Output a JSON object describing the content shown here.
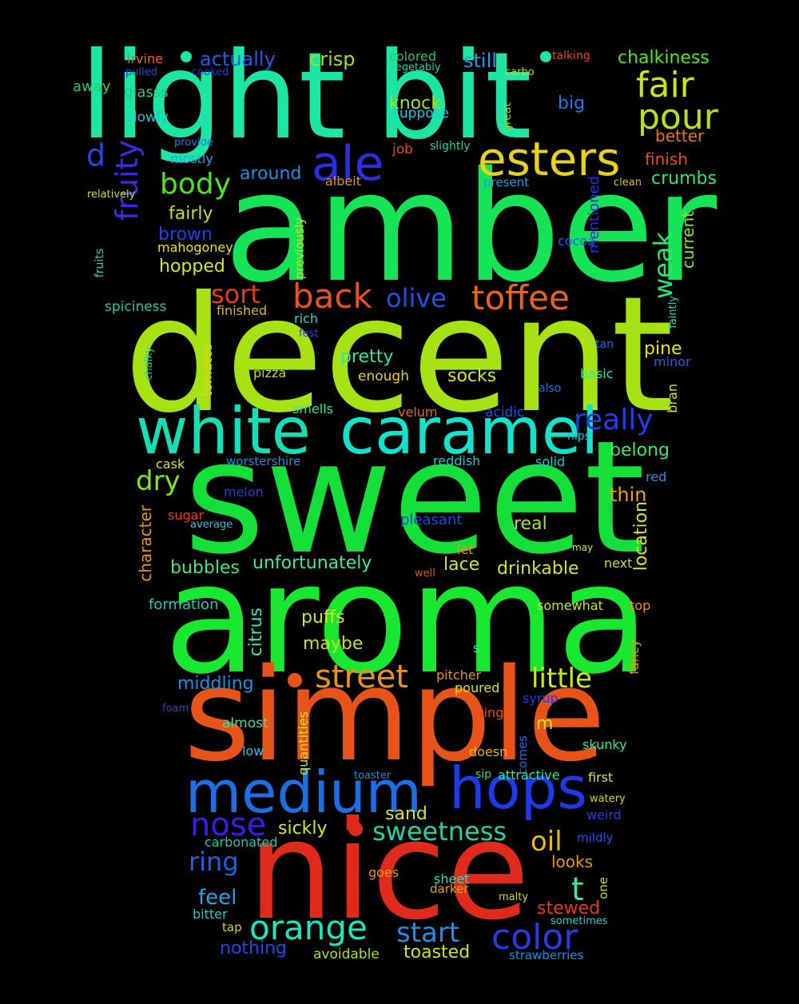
{
  "words": [
    {
      "text": "light",
      "color": "#1de6a4"
    },
    {
      "text": "bit",
      "color": "#1de6a4"
    },
    {
      "text": "amber",
      "color": "#15e456"
    },
    {
      "text": "decent",
      "color": "#a6e214"
    },
    {
      "text": "sweet",
      "color": "#15e03a"
    },
    {
      "text": "aroma",
      "color": "#19e830"
    },
    {
      "text": "simple",
      "color": "#e8531a"
    },
    {
      "text": "nice",
      "color": "#e02a1c"
    },
    {
      "text": "white",
      "color": "#14dfb6"
    },
    {
      "text": "caramel",
      "color": "#14e3cb"
    },
    {
      "text": "medium",
      "color": "#1e6fe6"
    },
    {
      "text": "hops",
      "color": "#1d3be6"
    },
    {
      "text": "esters",
      "color": "#e6d21a"
    },
    {
      "text": "ale",
      "color": "#2a2fe0"
    },
    {
      "text": "fair",
      "color": "#c8e61a"
    },
    {
      "text": "pour",
      "color": "#b8e01a"
    },
    {
      "text": "fruity",
      "color": "#3a2ae6"
    },
    {
      "text": "toffee",
      "color": "#e8641c"
    },
    {
      "text": "back",
      "color": "#e6541a"
    },
    {
      "text": "olive",
      "color": "#2050e6"
    },
    {
      "text": "sort",
      "color": "#e63a1a"
    },
    {
      "text": "body",
      "color": "#4ee61a"
    },
    {
      "text": "d",
      "color": "#2248e0"
    },
    {
      "text": "street",
      "color": "#e8941c"
    },
    {
      "text": "little",
      "color": "#cde61c"
    },
    {
      "text": "nose",
      "color": "#3a1ee6"
    },
    {
      "text": "orange",
      "color": "#1ee6bc"
    },
    {
      "text": "color",
      "color": "#2a3ae6"
    },
    {
      "text": "start",
      "color": "#1e8ee6"
    },
    {
      "text": "sweetness",
      "color": "#1ed6a4"
    },
    {
      "text": "ring",
      "color": "#1e60e6"
    },
    {
      "text": "oil",
      "color": "#e6b81a"
    },
    {
      "text": "really",
      "color": "#1e40e6"
    },
    {
      "text": "weak",
      "color": "#2ae66c"
    },
    {
      "text": "t",
      "color": "#34e8a0"
    },
    {
      "text": "feel",
      "color": "#1ea8e6"
    },
    {
      "text": "dry",
      "color": "#7ee61a"
    },
    {
      "text": "actually",
      "color": "#2a5ae6"
    },
    {
      "text": "crisp",
      "color": "#a6e01a"
    },
    {
      "text": "still",
      "color": "#1e9ee6"
    },
    {
      "text": "chalkiness",
      "color": "#50e61a"
    },
    {
      "text": "irvine",
      "color": "#e8641c"
    },
    {
      "text": "colored",
      "color": "#20c860"
    },
    {
      "text": "talking",
      "color": "#e04a1a"
    },
    {
      "text": "pulled",
      "color": "#3240e0"
    },
    {
      "text": "cooked",
      "color": "#2a3ae0"
    },
    {
      "text": "vegetably",
      "color": "#20d6a0"
    },
    {
      "text": "carbo",
      "color": "#d6d61a"
    },
    {
      "text": "away",
      "color": "#28d060"
    },
    {
      "text": "glasss",
      "color": "#20c886"
    },
    {
      "text": "slowly",
      "color": "#1ec8d6"
    },
    {
      "text": "knock",
      "color": "#a8e01a"
    },
    {
      "text": "suppose",
      "color": "#1ec8e0"
    },
    {
      "text": "big",
      "color": "#1e7ae6"
    },
    {
      "text": "great",
      "color": "#9ad61a"
    },
    {
      "text": "better",
      "color": "#e67a1a"
    },
    {
      "text": "provide",
      "color": "#1e7ae0"
    },
    {
      "text": "mostly",
      "color": "#1eb0e6"
    },
    {
      "text": "job",
      "color": "#e64a1a"
    },
    {
      "text": "slightly",
      "color": "#20d690"
    },
    {
      "text": "finish",
      "color": "#e64a1a"
    },
    {
      "text": "relatively",
      "color": "#c8e01a"
    },
    {
      "text": "around",
      "color": "#1e8ee6"
    },
    {
      "text": "albeit",
      "color": "#e6961a"
    },
    {
      "text": "present",
      "color": "#1e9ed6"
    },
    {
      "text": "mentioned",
      "color": "#2a2ee0"
    },
    {
      "text": "clean",
      "color": "#d6c81a"
    },
    {
      "text": "crumbs",
      "color": "#30e66c"
    },
    {
      "text": "fairly",
      "color": "#c8e01a"
    },
    {
      "text": "brown",
      "color": "#1e42e6"
    },
    {
      "text": "previously",
      "color": "#d6d61a"
    },
    {
      "text": "cocoa",
      "color": "#1e60e6"
    },
    {
      "text": "current",
      "color": "#8ae61a"
    },
    {
      "text": "mahogoney",
      "color": "#e6e61a"
    },
    {
      "text": "fruits",
      "color": "#30d6a0"
    },
    {
      "text": "hopped",
      "color": "#d6e61a"
    },
    {
      "text": "spiciness",
      "color": "#20c8a8"
    },
    {
      "text": "finished",
      "color": "#d6b81a"
    },
    {
      "text": "rich",
      "color": "#1ed6c8"
    },
    {
      "text": "fest",
      "color": "#3a40e0"
    },
    {
      "text": "faintly",
      "color": "#30d6b0"
    },
    {
      "text": "chalky",
      "color": "#28d090"
    },
    {
      "text": "tomates",
      "color": "#e6d01a"
    },
    {
      "text": "pretty",
      "color": "#30e6a8"
    },
    {
      "text": "pizza",
      "color": "#c8d61a"
    },
    {
      "text": "enough",
      "color": "#e6d21a"
    },
    {
      "text": "socks",
      "color": "#d6e61a"
    },
    {
      "text": "tan",
      "color": "#1e6ae6"
    },
    {
      "text": "pine",
      "color": "#e6e61a"
    },
    {
      "text": "minor",
      "color": "#2a5ae6"
    },
    {
      "text": "basic",
      "color": "#30e6a0"
    },
    {
      "text": "also",
      "color": "#1e70e0"
    },
    {
      "text": "bran",
      "color": "#d6e61a"
    },
    {
      "text": "smells",
      "color": "#30e6a0"
    },
    {
      "text": "velum",
      "color": "#e6641a"
    },
    {
      "text": "acidic",
      "color": "#1e4ee6"
    },
    {
      "text": "nips",
      "color": "#1ec8d6"
    },
    {
      "text": "belong",
      "color": "#40e66a"
    },
    {
      "text": "cask",
      "color": "#d6e61a"
    },
    {
      "text": "worstershire",
      "color": "#1e8ee0"
    },
    {
      "text": "reddish",
      "color": "#20c8c8"
    },
    {
      "text": "solid",
      "color": "#20c8c8"
    },
    {
      "text": "red",
      "color": "#2a8ee6"
    },
    {
      "text": "melon",
      "color": "#2a3ae0"
    },
    {
      "text": "thin",
      "color": "#e6a21a"
    },
    {
      "text": "character",
      "color": "#e6961a"
    },
    {
      "text": "sugar",
      "color": "#e63a1a"
    },
    {
      "text": "average",
      "color": "#1ec8e0"
    },
    {
      "text": "pleasant",
      "color": "#1e48e6"
    },
    {
      "text": "real",
      "color": "#a8e61a"
    },
    {
      "text": "location",
      "color": "#d6e61a"
    },
    {
      "text": "let",
      "color": "#e6961a"
    },
    {
      "text": "may",
      "color": "#d6e61a"
    },
    {
      "text": "bubbles",
      "color": "#40e680"
    },
    {
      "text": "unfortunately",
      "color": "#40e6a0"
    },
    {
      "text": "lace",
      "color": "#d6e61a"
    },
    {
      "text": "drinkable",
      "color": "#d6e61a"
    },
    {
      "text": "well",
      "color": "#e6561a"
    },
    {
      "text": "next",
      "color": "#d6d61a"
    },
    {
      "text": "formation",
      "color": "#20c8b0"
    },
    {
      "text": "citrus",
      "color": "#30e6b8"
    },
    {
      "text": "somewhat",
      "color": "#c8e61a"
    },
    {
      "text": "top",
      "color": "#e6961a"
    },
    {
      "text": "puffs",
      "color": "#d6e61a"
    },
    {
      "text": "maybe",
      "color": "#c8e01a"
    },
    {
      "text": "fancy",
      "color": "#e6961a"
    },
    {
      "text": "s",
      "color": "#30e6b0"
    },
    {
      "text": "middling",
      "color": "#1e8ee6"
    },
    {
      "text": "pitcher",
      "color": "#e6961a"
    },
    {
      "text": "poured",
      "color": "#d6e61a"
    },
    {
      "text": "foam",
      "color": "#3a3ae0"
    },
    {
      "text": "sting",
      "color": "#e64a1a"
    },
    {
      "text": "syrup",
      "color": "#2a3ae0"
    },
    {
      "text": "almost",
      "color": "#30e6a0"
    },
    {
      "text": "m",
      "color": "#d6e61a"
    },
    {
      "text": "quantities",
      "color": "#d6e61a"
    },
    {
      "text": "low",
      "color": "#1ec8e0"
    },
    {
      "text": "doesn",
      "color": "#e6b81a"
    },
    {
      "text": "comes",
      "color": "#1e6ae6"
    },
    {
      "text": "skunky",
      "color": "#30e6a0"
    },
    {
      "text": "toaster",
      "color": "#1e8ee0"
    },
    {
      "text": "sip",
      "color": "#30d6a0"
    },
    {
      "text": "attractive",
      "color": "#30e6a0"
    },
    {
      "text": "first",
      "color": "#d6e61a"
    },
    {
      "text": "watery",
      "color": "#d6d61a"
    },
    {
      "text": "weird",
      "color": "#2a3ae0"
    },
    {
      "text": "sand",
      "color": "#d6e61a"
    },
    {
      "text": "sickly",
      "color": "#d6e61a"
    },
    {
      "text": "carbonated",
      "color": "#20c8a0"
    },
    {
      "text": "mildly",
      "color": "#2a50e0"
    },
    {
      "text": "looks",
      "color": "#e6961a"
    },
    {
      "text": "goes",
      "color": "#e6961a"
    },
    {
      "text": "sheet",
      "color": "#1ee6c8"
    },
    {
      "text": "darker",
      "color": "#e6a21a"
    },
    {
      "text": "malty",
      "color": "#d6d61a"
    },
    {
      "text": "one",
      "color": "#d6d61a"
    },
    {
      "text": "stewed",
      "color": "#e63a1a"
    },
    {
      "text": "bitter",
      "color": "#20c8c8"
    },
    {
      "text": "tap",
      "color": "#d6d61a"
    },
    {
      "text": "sometimes",
      "color": "#1ed6c8"
    },
    {
      "text": "nothing",
      "color": "#1e48e6"
    },
    {
      "text": "avoidable",
      "color": "#a8e61a"
    },
    {
      "text": "toasted",
      "color": "#c8e61a"
    },
    {
      "text": "strawberries",
      "color": "#1e8ee6"
    }
  ]
}
